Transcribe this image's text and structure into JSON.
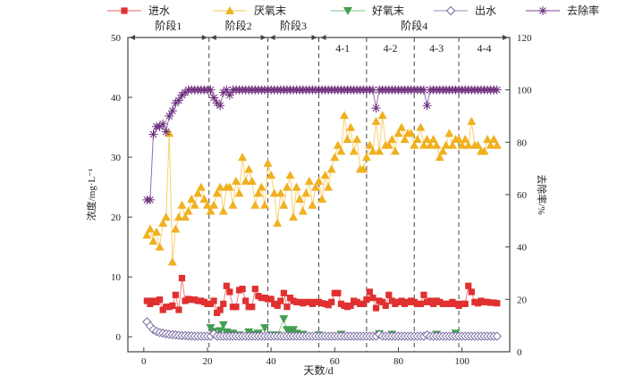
{
  "chart_data": {
    "type": "line",
    "xlabel": "天数/d",
    "ylabel_left": "浓度/mg·L⁻¹",
    "ylabel_right": "去除率/%",
    "xlim": [
      -5,
      115
    ],
    "ylim_left": [
      -2.5,
      50
    ],
    "ylim_right": [
      0,
      120
    ],
    "x_ticks": [
      0,
      20,
      40,
      60,
      80,
      100
    ],
    "y_ticks_left": [
      0,
      10,
      20,
      30,
      40,
      50
    ],
    "y_ticks_right": [
      0,
      20,
      40,
      60,
      80,
      100,
      120
    ],
    "grid": false,
    "legend_position": "top",
    "phases": [
      {
        "label": "阶段1",
        "start": -5,
        "end": 20.5
      },
      {
        "label": "阶段2",
        "start": 20.5,
        "end": 39
      },
      {
        "label": "阶段3",
        "start": 39,
        "end": 55
      },
      {
        "label": "阶段4",
        "start": 55,
        "end": 115
      }
    ],
    "subphases": [
      {
        "label": "4-1",
        "start": 55,
        "end": 70
      },
      {
        "label": "4-2",
        "start": 70,
        "end": 85
      },
      {
        "label": "4-3",
        "start": 85,
        "end": 99
      },
      {
        "label": "4-4",
        "start": 99,
        "end": 115
      }
    ],
    "series": [
      {
        "name": "进水",
        "axis": "left",
        "marker": "square",
        "color": "#e03030",
        "line_color": "#f08080",
        "values": [
          6,
          5.5,
          6,
          5.8,
          6.2,
          4.5,
          5,
          5,
          5.2,
          7,
          4.5,
          9.8,
          6,
          6.3,
          6.2,
          6.2,
          6,
          6,
          5.8,
          5.5,
          5.5,
          6,
          4,
          4.5,
          5.5,
          8.5,
          7.5,
          5,
          5,
          7.8,
          8,
          6,
          5,
          5,
          8,
          6.8,
          6.5,
          6.5,
          6.3,
          6.3,
          5.5,
          5.2,
          6,
          7.3,
          5,
          6.5,
          6,
          5.8,
          5.8,
          5.6,
          5.8,
          5.8,
          5.5,
          5.8,
          5.8,
          5.6,
          5.5,
          5.3,
          5.8,
          7.3,
          7.3,
          5.5,
          5.2,
          5,
          5.2,
          6,
          5.8,
          5.5,
          5.5,
          6.2,
          7.5,
          6.5,
          4.8,
          6,
          5.8,
          5.2,
          7,
          6,
          5.5,
          5.8,
          6,
          5.5,
          5.8,
          6,
          5.8,
          5.5,
          5.5,
          7,
          5.8,
          6,
          5.5,
          6,
          5.8,
          5.5,
          5.5,
          5.5,
          5.8,
          5.5,
          5.2,
          5.5,
          5.5,
          8.5,
          7.5,
          5.8,
          5.6,
          6,
          5.8,
          5.8,
          5.7,
          5.7,
          5.6
        ]
      },
      {
        "name": "厌氧末",
        "axis": "left",
        "marker": "triangle-up",
        "color": "#f0b020",
        "line_color": "#f8d070",
        "values": [
          17,
          18,
          16,
          17.5,
          15,
          19,
          20,
          34,
          12.5,
          18,
          20,
          22,
          20,
          21,
          23,
          22,
          24,
          25,
          23,
          22,
          21,
          22,
          24,
          25,
          21,
          25,
          25,
          22,
          26,
          24,
          30,
          26,
          28,
          26,
          22,
          24,
          25,
          22,
          29,
          27,
          24,
          19,
          24,
          22,
          25,
          27,
          20,
          25,
          23,
          21,
          24,
          26,
          22,
          25,
          26,
          23,
          27,
          25,
          28,
          30,
          32,
          31,
          37,
          33,
          35,
          31,
          33,
          28,
          28,
          30,
          32,
          31,
          36,
          31,
          37,
          32,
          32,
          33,
          31,
          34,
          35,
          33,
          34,
          34,
          32,
          33,
          35,
          32,
          33,
          32,
          33,
          32,
          30,
          31,
          32,
          34,
          32,
          33,
          33,
          32,
          33,
          32,
          36,
          32,
          32,
          31,
          31,
          33,
          32,
          33,
          32
        ]
      },
      {
        "name": "好氧末",
        "axis": "left",
        "marker": "triangle-down",
        "color": "#40a050",
        "line_color": "#90d090",
        "points": [
          [
            21,
            1.5
          ],
          [
            22,
            0.9
          ],
          [
            23,
            0.3
          ],
          [
            24,
            1.0
          ],
          [
            25,
            2.0
          ],
          [
            26,
            0.8
          ],
          [
            27,
            0.5
          ],
          [
            28,
            0.6
          ],
          [
            30,
            0.3
          ],
          [
            33,
            0.8
          ],
          [
            35,
            0.4
          ],
          [
            36,
            0.6
          ],
          [
            38,
            1.5
          ],
          [
            40,
            0.3
          ],
          [
            42,
            0.3
          ],
          [
            44,
            3.0
          ],
          [
            45,
            1.2
          ],
          [
            46,
            0.9
          ],
          [
            47,
            1.2
          ],
          [
            48,
            0.6
          ],
          [
            50,
            0.4
          ],
          [
            55,
            0.3
          ],
          [
            62,
            0.4
          ],
          [
            74,
            0.5
          ],
          [
            78,
            0.4
          ],
          [
            92,
            0.4
          ],
          [
            98,
            0.6
          ]
        ]
      },
      {
        "name": "出水",
        "axis": "left",
        "marker": "diamond-open",
        "color": "#7a6aa0",
        "line_color": "#b0a0d0",
        "values": [
          2.5,
          1.8,
          1.2,
          0.9,
          0.7,
          0.6,
          0.5,
          0.4,
          0.35,
          0.3,
          0.25,
          0.2,
          0.2,
          0.15,
          0.15,
          0.1,
          0.1,
          0.1,
          0.1,
          0.1,
          0.1,
          0.5,
          0.1,
          0.1,
          0.1,
          0.1,
          0.1,
          0.1,
          0.1,
          0.1,
          0.1,
          0.1,
          0.1,
          0.1,
          0.1,
          0.1,
          0.1,
          0.1,
          0.1,
          0.1,
          0.1,
          0.1,
          0.1,
          0.1,
          0.1,
          0.1,
          0.1,
          0.1,
          0.1,
          0.1,
          0.1,
          0.1,
          0.1,
          0.1,
          0.1,
          0.1,
          0.1,
          0.1,
          0.1,
          0.1,
          0.1,
          0.1,
          0.1,
          0.1,
          0.1,
          0.1,
          0.1,
          0.1,
          0.1,
          0.1,
          0.1,
          0.1,
          0.1,
          0.4,
          0.1,
          0.1,
          0.1,
          0.1,
          0.1,
          0.1,
          0.1,
          0.1,
          0.1,
          0.1,
          0.1,
          0.1,
          0.1,
          0.1,
          0.3,
          0.1,
          0.1,
          0.1,
          0.1,
          0.1,
          0.1,
          0.1,
          0.1,
          0.1,
          0.1,
          0.1,
          0.1,
          0.1,
          0.1,
          0.1,
          0.1,
          0.1,
          0.1,
          0.1,
          0.1,
          0.1,
          0.1
        ]
      },
      {
        "name": "去除率",
        "axis": "right",
        "marker": "asterisk",
        "color": "#6a2a7a",
        "line_color": "#9a6aaa",
        "values": [
          58,
          58,
          83,
          86,
          86,
          87,
          84,
          90,
          92,
          95,
          96,
          98,
          99,
          100,
          100,
          100,
          100,
          100,
          100,
          100,
          100,
          97,
          95,
          94,
          99,
          100,
          98,
          100,
          100,
          100,
          100,
          100,
          100,
          100,
          100,
          100,
          100,
          100,
          100,
          100,
          100,
          100,
          100,
          100,
          100,
          100,
          100,
          100,
          100,
          100,
          100,
          100,
          100,
          100,
          100,
          100,
          100,
          100,
          100,
          100,
          100,
          100,
          100,
          100,
          100,
          100,
          100,
          100,
          100,
          100,
          100,
          100,
          93,
          100,
          100,
          100,
          100,
          100,
          100,
          100,
          100,
          100,
          100,
          100,
          100,
          100,
          100,
          100,
          94,
          100,
          100,
          100,
          100,
          100,
          100,
          100,
          100,
          100,
          100,
          100,
          100,
          100,
          100,
          100,
          100,
          100,
          100,
          100,
          100,
          100,
          100
        ]
      }
    ]
  }
}
